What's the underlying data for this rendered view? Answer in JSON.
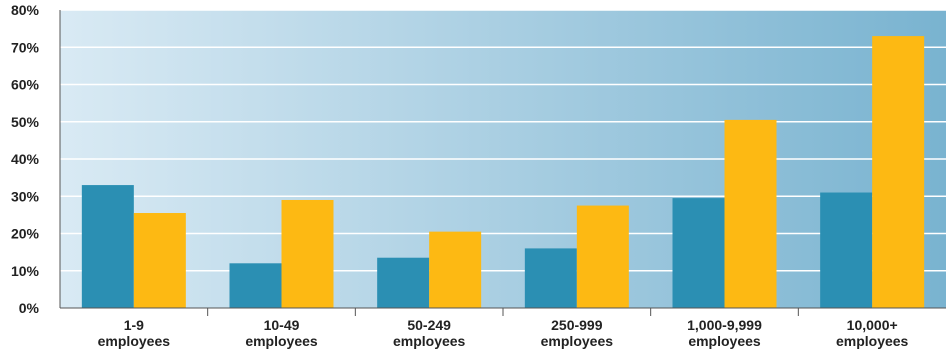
{
  "chart_data": {
    "type": "bar",
    "categories": [
      [
        "1-9",
        "employees"
      ],
      [
        "10-49",
        "employees"
      ],
      [
        "50-249",
        "employees"
      ],
      [
        "250-999",
        "employees"
      ],
      [
        "1,000-9,999",
        "employees"
      ],
      [
        "10,000+",
        "employees"
      ]
    ],
    "series": [
      {
        "values": [
          33,
          12,
          13.5,
          16,
          29.5,
          31
        ],
        "color": "#2b8fb3"
      },
      {
        "values": [
          25.5,
          29,
          20.5,
          27.5,
          50.5,
          73
        ],
        "color": "#fdb913"
      }
    ],
    "yticks": [
      "0%",
      "10%",
      "20%",
      "30%",
      "40%",
      "50%",
      "60%",
      "70%",
      "80%"
    ],
    "ylim": [
      0,
      80
    ],
    "grid": true,
    "legend": "none",
    "background_gradient": [
      "#d9eaf4",
      "#79b3d0"
    ]
  }
}
